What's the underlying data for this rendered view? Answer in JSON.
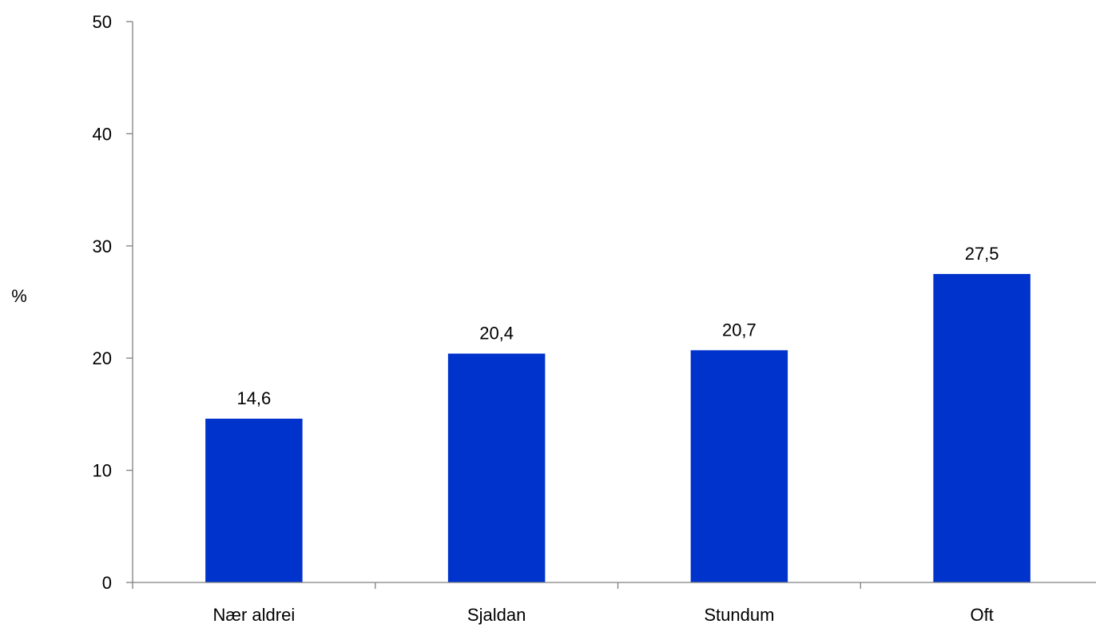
{
  "chart_data": {
    "type": "bar",
    "title": "",
    "xlabel": "",
    "ylabel": "%",
    "ylim": [
      0,
      50
    ],
    "yticks": [
      "0",
      "10",
      "20",
      "30",
      "40",
      "50"
    ],
    "categories": [
      "Nær aldrei",
      "Sjaldan",
      "Stundum",
      "Oft"
    ],
    "values": [
      14.6,
      20.4,
      20.7,
      27.5
    ],
    "value_labels": [
      "14,6",
      "20,4",
      "20,7",
      "27,5"
    ],
    "bar_color": "#0033cc",
    "grid": false,
    "legend": "none"
  }
}
